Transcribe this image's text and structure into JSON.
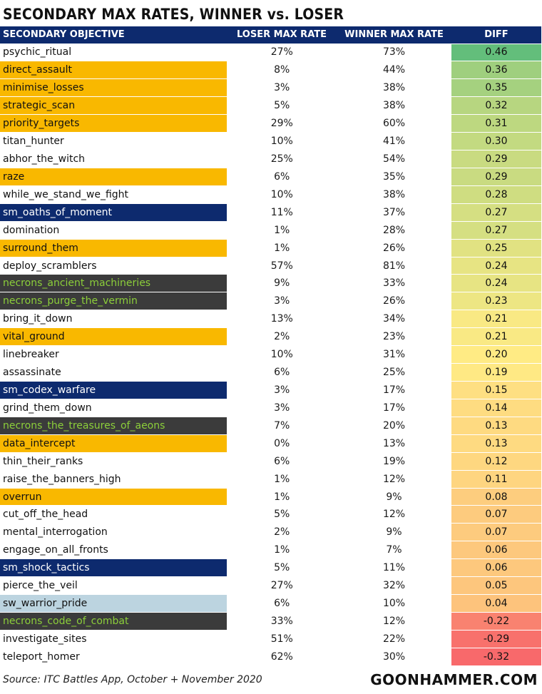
{
  "title": "SECONDARY MAX RATES, WINNER vs. LOSER",
  "source": "Source: ITC Battles App, October + November 2020",
  "brand": "GOONHAMMER.COM",
  "colors": {
    "header_bg": "#0d2a6e",
    "gold": "#f9b800",
    "blue": "#0d2a6e",
    "dark": "#3b3b3b",
    "dark_text": "#8ccf3a",
    "light": "#bcd4e0",
    "diff_high": "#63be7b",
    "diff_mid": "#ffeb84",
    "diff_low": "#f8696b"
  },
  "chart_data": {
    "type": "table",
    "title": "SECONDARY MAX RATES, WINNER vs. LOSER",
    "columns": [
      "SECONDARY OBJECTIVE",
      "LOSER MAX RATE",
      "WINNER MAX RATE",
      "DIFF"
    ],
    "rows": [
      {
        "name": "psychic_ritual",
        "style": "white",
        "loser": "27%",
        "winner": "73%",
        "diff": 0.46
      },
      {
        "name": "direct_assault",
        "style": "gold",
        "loser": "8%",
        "winner": "44%",
        "diff": 0.36
      },
      {
        "name": "minimise_losses",
        "style": "gold",
        "loser": "3%",
        "winner": "38%",
        "diff": 0.35
      },
      {
        "name": "strategic_scan",
        "style": "gold",
        "loser": "5%",
        "winner": "38%",
        "diff": 0.32
      },
      {
        "name": "priority_targets",
        "style": "gold",
        "loser": "29%",
        "winner": "60%",
        "diff": 0.31
      },
      {
        "name": "titan_hunter",
        "style": "white",
        "loser": "10%",
        "winner": "41%",
        "diff": 0.3
      },
      {
        "name": "abhor_the_witch",
        "style": "white",
        "loser": "25%",
        "winner": "54%",
        "diff": 0.29
      },
      {
        "name": "raze",
        "style": "gold",
        "loser": "6%",
        "winner": "35%",
        "diff": 0.29
      },
      {
        "name": "while_we_stand_we_fight",
        "style": "white",
        "loser": "10%",
        "winner": "38%",
        "diff": 0.28
      },
      {
        "name": "sm_oaths_of_moment",
        "style": "blue",
        "loser": "11%",
        "winner": "37%",
        "diff": 0.27
      },
      {
        "name": "domination",
        "style": "white",
        "loser": "1%",
        "winner": "28%",
        "diff": 0.27
      },
      {
        "name": "surround_them",
        "style": "gold",
        "loser": "1%",
        "winner": "26%",
        "diff": 0.25
      },
      {
        "name": "deploy_scramblers",
        "style": "white",
        "loser": "57%",
        "winner": "81%",
        "diff": 0.24
      },
      {
        "name": "necrons_ancient_machineries",
        "style": "dark",
        "loser": "9%",
        "winner": "33%",
        "diff": 0.24
      },
      {
        "name": "necrons_purge_the_vermin",
        "style": "dark",
        "loser": "3%",
        "winner": "26%",
        "diff": 0.23
      },
      {
        "name": "bring_it_down",
        "style": "white",
        "loser": "13%",
        "winner": "34%",
        "diff": 0.21
      },
      {
        "name": "vital_ground",
        "style": "gold",
        "loser": "2%",
        "winner": "23%",
        "diff": 0.21
      },
      {
        "name": "linebreaker",
        "style": "white",
        "loser": "10%",
        "winner": "31%",
        "diff": 0.2
      },
      {
        "name": "assassinate",
        "style": "white",
        "loser": "6%",
        "winner": "25%",
        "diff": 0.19
      },
      {
        "name": "sm_codex_warfare",
        "style": "blue",
        "loser": "3%",
        "winner": "17%",
        "diff": 0.15
      },
      {
        "name": "grind_them_down",
        "style": "white",
        "loser": "3%",
        "winner": "17%",
        "diff": 0.14
      },
      {
        "name": "necrons_the_treasures_of_aeons",
        "style": "dark",
        "loser": "7%",
        "winner": "20%",
        "diff": 0.13
      },
      {
        "name": "data_intercept",
        "style": "gold",
        "loser": "0%",
        "winner": "13%",
        "diff": 0.13
      },
      {
        "name": "thin_their_ranks",
        "style": "white",
        "loser": "6%",
        "winner": "19%",
        "diff": 0.12
      },
      {
        "name": "raise_the_banners_high",
        "style": "white",
        "loser": "1%",
        "winner": "12%",
        "diff": 0.11
      },
      {
        "name": "overrun",
        "style": "gold",
        "loser": "1%",
        "winner": "9%",
        "diff": 0.08
      },
      {
        "name": "cut_off_the_head",
        "style": "white",
        "loser": "5%",
        "winner": "12%",
        "diff": 0.07
      },
      {
        "name": "mental_interrogation",
        "style": "white",
        "loser": "2%",
        "winner": "9%",
        "diff": 0.07
      },
      {
        "name": "engage_on_all_fronts",
        "style": "white",
        "loser": "1%",
        "winner": "7%",
        "diff": 0.06
      },
      {
        "name": "sm_shock_tactics",
        "style": "blue",
        "loser": "5%",
        "winner": "11%",
        "diff": 0.06
      },
      {
        "name": "pierce_the_veil",
        "style": "white",
        "loser": "27%",
        "winner": "32%",
        "diff": 0.05
      },
      {
        "name": "sw_warrior_pride",
        "style": "light",
        "loser": "6%",
        "winner": "10%",
        "diff": 0.04
      },
      {
        "name": "necrons_code_of_combat",
        "style": "dark",
        "loser": "33%",
        "winner": "12%",
        "diff": -0.22
      },
      {
        "name": "investigate_sites",
        "style": "white",
        "loser": "51%",
        "winner": "22%",
        "diff": -0.29
      },
      {
        "name": "teleport_homer",
        "style": "white",
        "loser": "62%",
        "winner": "30%",
        "diff": -0.32
      }
    ]
  }
}
